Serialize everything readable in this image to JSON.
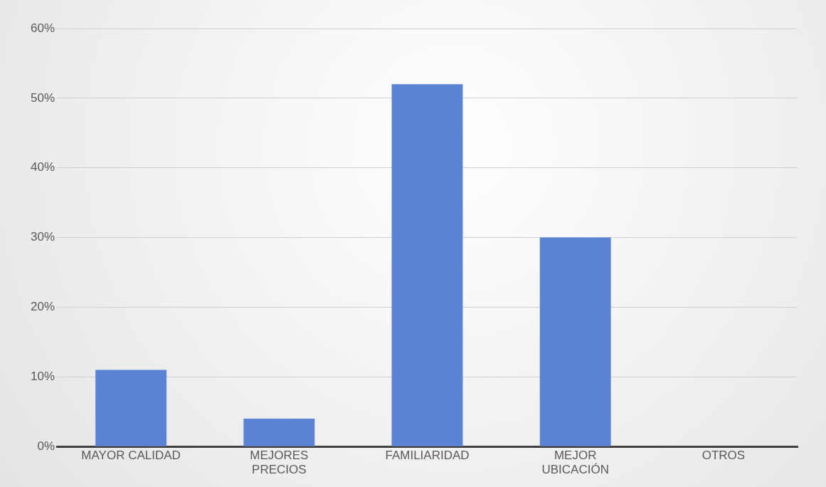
{
  "chart_data": {
    "type": "bar",
    "categories": [
      "MAYOR CALIDAD",
      "MEJORES PRECIOS",
      "FAMILIARIDAD",
      "MEJOR UBICACIÓN",
      "OTROS"
    ],
    "values": [
      11,
      4,
      52,
      30,
      0
    ],
    "color": "#5b84d6",
    "ylim": [
      0,
      60
    ],
    "yticks": [
      {
        "value": 0,
        "label": "0%"
      },
      {
        "value": 10,
        "label": "10%"
      },
      {
        "value": 20,
        "label": "20%"
      },
      {
        "value": 30,
        "label": "30%"
      },
      {
        "value": 40,
        "label": "40%"
      },
      {
        "value": 50,
        "label": "50%"
      },
      {
        "value": 60,
        "label": "60%"
      }
    ],
    "grid": "y",
    "legend": false
  }
}
